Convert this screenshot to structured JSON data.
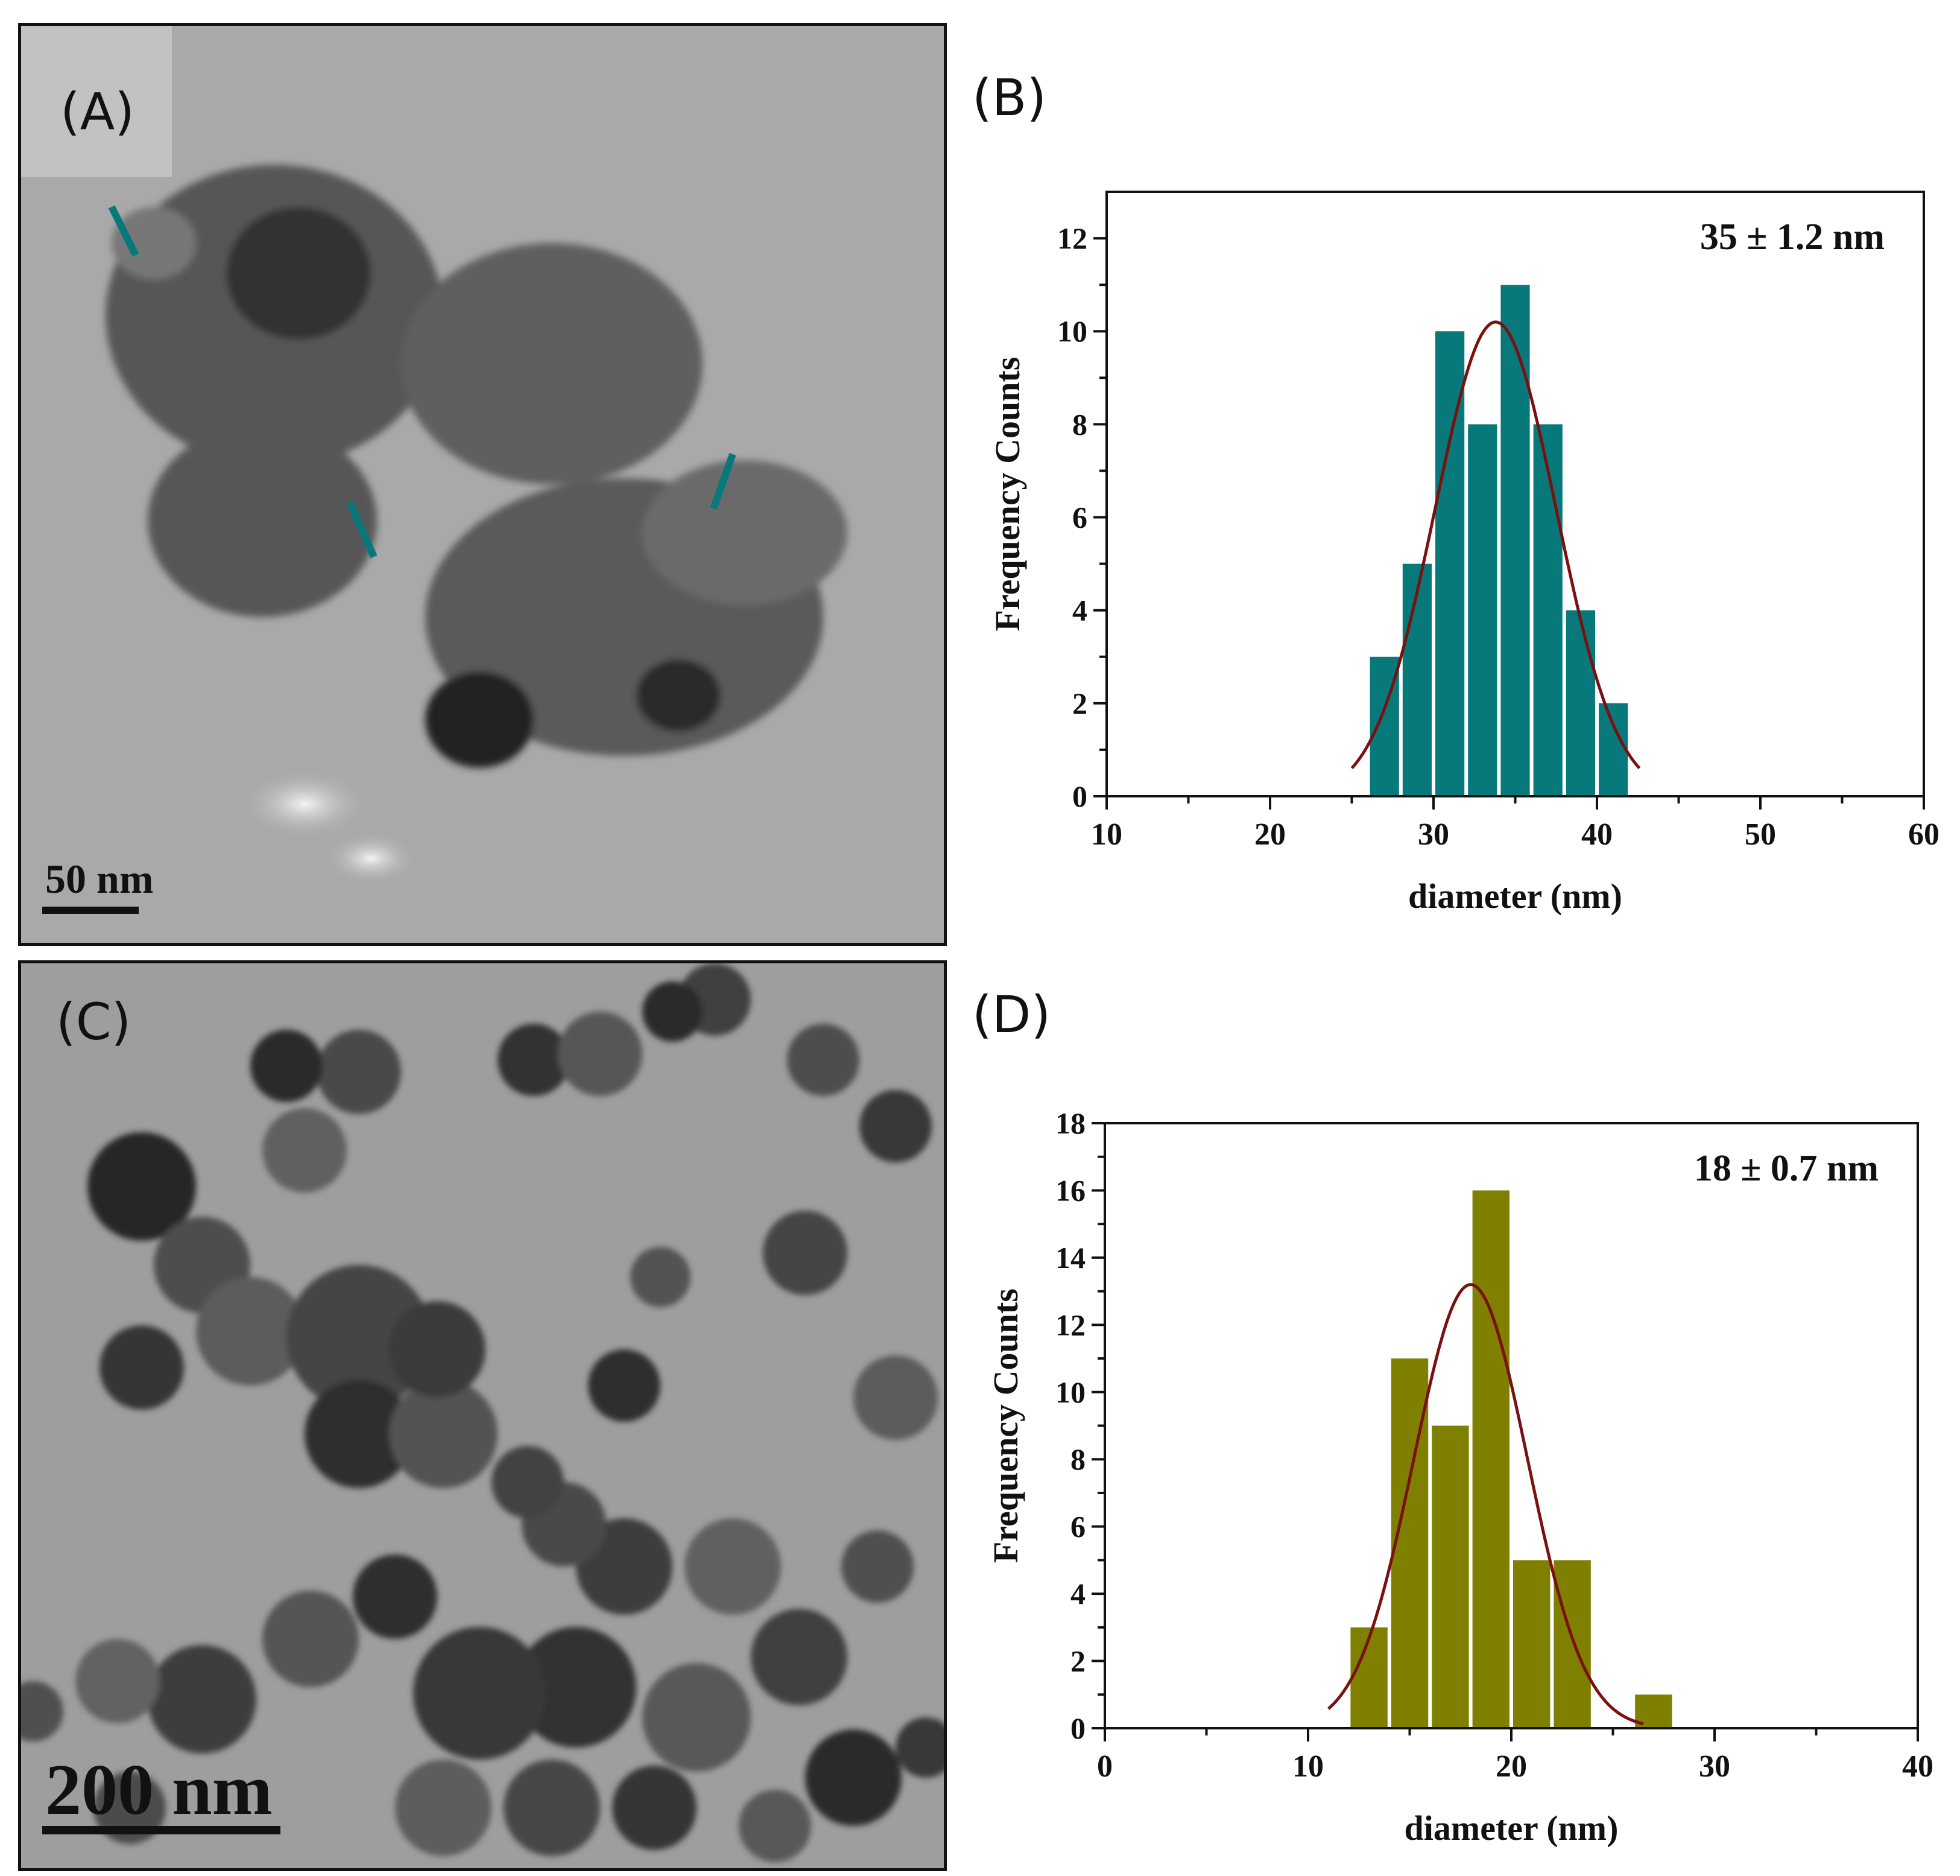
{
  "panels": {
    "a": {
      "letter": "(A)",
      "scale_bar": "50 nm"
    },
    "b": {
      "letter": "(B)"
    },
    "c": {
      "letter": "(C)",
      "scale_bar": "200 nm"
    },
    "d": {
      "letter": "(D)"
    }
  },
  "colors": {
    "teal": "#08797a",
    "olive": "#7f7f00",
    "fit_curve": "#7a1010"
  },
  "chart_data": [
    {
      "type": "bar",
      "panel": "(B)",
      "xlabel": "diameter (nm)",
      "ylabel": "Frequency Counts",
      "annotation": "35 ± 1.2 nm",
      "xlim": [
        10,
        60
      ],
      "ylim": [
        0,
        13
      ],
      "xticks": [
        10,
        20,
        30,
        40,
        50,
        60
      ],
      "yticks": [
        0,
        2,
        4,
        6,
        8,
        10,
        12
      ],
      "bin_width": 2,
      "bins": [
        {
          "x": 27,
          "y": 3
        },
        {
          "x": 29,
          "y": 5
        },
        {
          "x": 31,
          "y": 10
        },
        {
          "x": 33,
          "y": 8
        },
        {
          "x": 35,
          "y": 11
        },
        {
          "x": 37,
          "y": 8
        },
        {
          "x": 39,
          "y": 4
        },
        {
          "x": 41,
          "y": 2
        }
      ],
      "fit": {
        "type": "gaussian",
        "center": 33.8,
        "amplitude": 10.2,
        "sigma": 3.7,
        "x_range": [
          25,
          42.6
        ]
      },
      "bar_color": "#08797a"
    },
    {
      "type": "bar",
      "panel": "(D)",
      "xlabel": "diameter (nm)",
      "ylabel": "Frequency Counts",
      "annotation": "18 ± 0.7 nm",
      "xlim": [
        0,
        40
      ],
      "ylim": [
        0,
        18
      ],
      "xticks": [
        0,
        10,
        20,
        30,
        40
      ],
      "yticks": [
        0,
        2,
        4,
        6,
        8,
        10,
        12,
        14,
        16,
        18
      ],
      "bin_width": 2,
      "bins": [
        {
          "x": 13,
          "y": 3
        },
        {
          "x": 15,
          "y": 11
        },
        {
          "x": 17,
          "y": 9
        },
        {
          "x": 19,
          "y": 16
        },
        {
          "x": 21,
          "y": 5
        },
        {
          "x": 23,
          "y": 5
        },
        {
          "x": 25,
          "y": 0
        },
        {
          "x": 27,
          "y": 1
        }
      ],
      "fit": {
        "type": "gaussian",
        "center": 18,
        "amplitude": 13.2,
        "sigma": 2.8,
        "x_range": [
          11,
          26.5
        ]
      },
      "bar_color": "#7f7f00"
    }
  ]
}
